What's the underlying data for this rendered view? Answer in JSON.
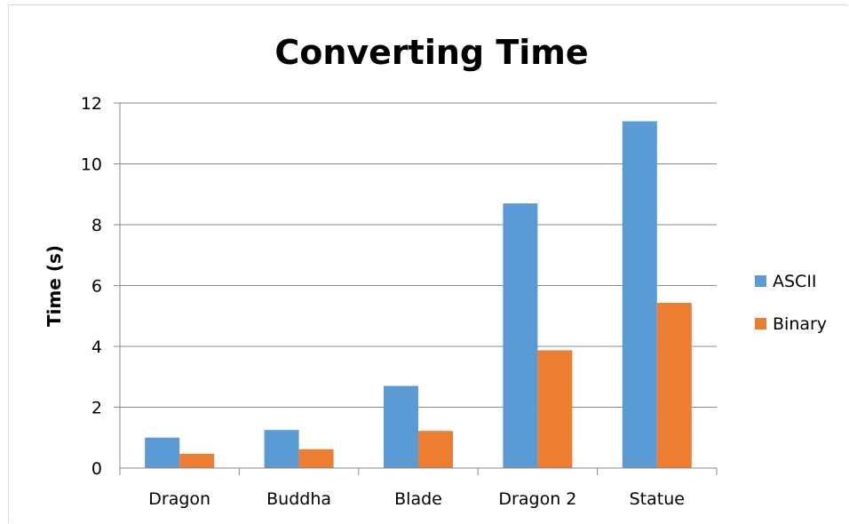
{
  "chart_data": {
    "type": "bar",
    "title": "Converting Time",
    "xlabel": "",
    "ylabel": "Time (s)",
    "ylim": [
      0,
      12
    ],
    "yticks": [
      0,
      2,
      4,
      6,
      8,
      10,
      12
    ],
    "grid": true,
    "legend_position": "right",
    "categories": [
      "Dragon",
      "Buddha",
      "Blade",
      "Dragon 2",
      "Statue"
    ],
    "series": [
      {
        "name": "ASCII",
        "color": "#5b9bd5",
        "values": [
          1.0,
          1.25,
          2.7,
          8.7,
          11.4
        ]
      },
      {
        "name": "Binary",
        "color": "#ed7d31",
        "values": [
          0.47,
          0.62,
          1.22,
          3.87,
          5.43
        ]
      }
    ]
  }
}
